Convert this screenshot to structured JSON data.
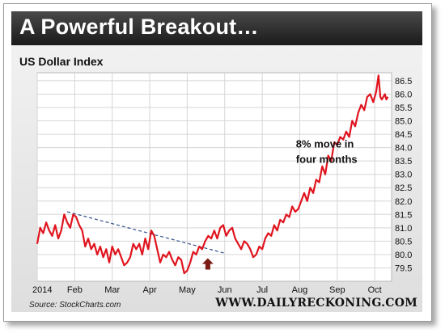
{
  "header": {
    "title": "A Powerful Breakout…"
  },
  "footer": {
    "source": "Source: StockCharts.com",
    "site": "WWW.DAILYRECKONING.COM"
  },
  "chart_data": {
    "type": "line",
    "subtitle": "US Dollar Index",
    "xlabel": "",
    "ylabel": "",
    "ylim": [
      79.0,
      86.8
    ],
    "y_ticks": [
      79.5,
      80.0,
      80.5,
      81.0,
      81.5,
      82.0,
      82.5,
      83.0,
      83.5,
      84.0,
      84.5,
      85.0,
      85.5,
      86.0,
      86.5
    ],
    "y_tick_labels": [
      "79.5",
      "80.0",
      "80.5",
      "81.0",
      "81.5",
      "82.0",
      "82.5",
      "83.0",
      "83.5",
      "84.0",
      "84.5",
      "85.0",
      "85.5",
      "86.0",
      "86.5"
    ],
    "x_range": [
      0,
      9.45
    ],
    "x_ticks": [
      0,
      1,
      2,
      3,
      4,
      5,
      6,
      7,
      8,
      9
    ],
    "x_tick_labels": [
      "2014",
      "Feb",
      "Mar",
      "Apr",
      "May",
      "Jun",
      "Jul",
      "Aug",
      "Sep",
      "Oct"
    ],
    "grid": true,
    "annotation": {
      "lines": [
        "8% move in",
        "four months"
      ],
      "x": 6.9,
      "y": 84.0
    },
    "line_color": "#e0141e",
    "trend_color": "#2f4f8a",
    "arrow_color": "#7a1a12",
    "series": [
      {
        "name": "",
        "x": [
          0.0,
          0.08,
          0.16,
          0.24,
          0.32,
          0.4,
          0.48,
          0.56,
          0.64,
          0.72,
          0.8,
          0.88,
          0.96,
          1.04,
          1.12,
          1.2,
          1.28,
          1.36,
          1.44,
          1.52,
          1.6,
          1.68,
          1.76,
          1.84,
          1.92,
          2.0,
          2.08,
          2.16,
          2.24,
          2.32,
          2.4,
          2.48,
          2.56,
          2.64,
          2.72,
          2.8,
          2.88,
          2.96,
          3.04,
          3.12,
          3.2,
          3.28,
          3.36,
          3.44,
          3.52,
          3.6,
          3.68,
          3.76,
          3.84,
          3.92,
          4.0,
          4.08,
          4.16,
          4.24,
          4.32,
          4.4,
          4.48,
          4.56,
          4.64,
          4.72,
          4.8,
          4.88,
          4.96,
          5.04,
          5.12,
          5.2,
          5.28,
          5.36,
          5.44,
          5.52,
          5.6,
          5.68,
          5.76,
          5.84,
          5.92,
          6.0,
          6.08,
          6.16,
          6.24,
          6.32,
          6.4,
          6.48,
          6.56,
          6.64,
          6.72,
          6.8,
          6.88,
          6.96,
          7.04,
          7.12,
          7.2,
          7.28,
          7.36,
          7.44,
          7.52,
          7.6,
          7.68,
          7.76,
          7.84,
          7.92,
          8.0,
          8.08,
          8.16,
          8.24,
          8.32,
          8.4,
          8.48,
          8.56,
          8.64,
          8.72,
          8.8,
          8.88,
          8.96,
          9.04,
          9.1,
          9.15,
          9.19,
          9.23,
          9.27,
          9.31,
          9.35
        ],
        "values": [
          80.4,
          81.0,
          80.8,
          81.2,
          80.9,
          80.7,
          81.1,
          80.6,
          80.9,
          81.5,
          81.2,
          81.0,
          81.5,
          81.4,
          81.1,
          80.9,
          80.3,
          80.6,
          80.2,
          80.4,
          80.0,
          80.3,
          79.9,
          80.2,
          79.7,
          80.3,
          80.0,
          80.2,
          79.9,
          79.6,
          79.7,
          79.9,
          80.4,
          80.2,
          80.4,
          80.0,
          80.6,
          80.2,
          80.9,
          80.7,
          80.2,
          79.7,
          80.0,
          79.9,
          80.1,
          79.8,
          79.6,
          79.9,
          79.8,
          79.3,
          79.4,
          79.7,
          80.1,
          80.0,
          80.3,
          80.2,
          80.5,
          80.7,
          80.6,
          80.9,
          80.6,
          81.0,
          81.1,
          80.7,
          80.9,
          81.0,
          80.6,
          80.4,
          80.2,
          80.5,
          80.4,
          80.2,
          79.9,
          80.0,
          80.3,
          80.2,
          80.6,
          80.8,
          80.7,
          81.1,
          80.9,
          81.3,
          81.2,
          81.5,
          81.4,
          81.8,
          81.6,
          81.7,
          82.0,
          82.3,
          82.0,
          82.5,
          82.3,
          82.8,
          82.7,
          83.3,
          83.0,
          83.7,
          83.5,
          84.2,
          84.1,
          84.4,
          84.3,
          84.6,
          84.4,
          85.0,
          84.8,
          85.3,
          85.6,
          85.4,
          85.9,
          86.0,
          85.7,
          86.1,
          86.7,
          85.9,
          85.8,
          85.9,
          86.0,
          85.8,
          85.9
        ]
      }
    ],
    "trendline": {
      "x": [
        0.8,
        5.0
      ],
      "values": [
        81.6,
        80.05
      ]
    },
    "arrow": {
      "x": 4.55,
      "y": 79.65
    }
  }
}
